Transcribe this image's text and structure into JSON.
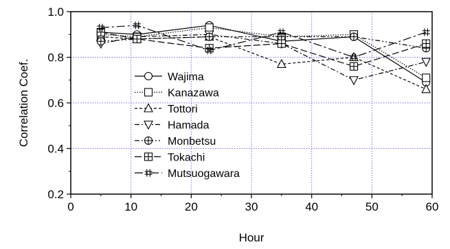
{
  "chart_data": {
    "type": "line",
    "xlabel": "Hour",
    "ylabel": "Correlation Coef.",
    "xlim": [
      0,
      60
    ],
    "ylim": [
      0.2,
      1.0
    ],
    "xticks": [
      0,
      10,
      20,
      30,
      40,
      50,
      60
    ],
    "yticks": [
      0.2,
      0.4,
      0.6,
      0.8,
      1.0
    ],
    "xtick_labels": [
      "0",
      "10",
      "20",
      "30",
      "40",
      "50",
      "60"
    ],
    "ytick_labels": [
      "0.2",
      "0.4",
      "0.6",
      "0.8",
      "1.0"
    ],
    "grid": true,
    "grid_color": "#6b6bff",
    "legend_position": "lower-left",
    "x": [
      5,
      11,
      23,
      35,
      47,
      59
    ],
    "series": [
      {
        "name": "Wajima",
        "marker": "circle",
        "dash": "solid",
        "values": [
          0.91,
          0.9,
          0.94,
          0.87,
          0.89,
          0.69
        ]
      },
      {
        "name": "Kanazawa",
        "marker": "square",
        "dash": "dotted",
        "values": [
          0.9,
          0.89,
          0.93,
          0.89,
          0.9,
          0.71
        ]
      },
      {
        "name": "Tottori",
        "marker": "triangle-up",
        "dash": "short-dash",
        "values": [
          0.89,
          0.88,
          0.89,
          0.77,
          0.8,
          0.66
        ]
      },
      {
        "name": "Hamada",
        "marker": "triangle-down",
        "dash": "dash-dot",
        "values": [
          0.86,
          0.89,
          0.9,
          0.86,
          0.7,
          0.78
        ]
      },
      {
        "name": "Monbetsu",
        "marker": "circle-plus",
        "dash": "dash-dot-dot",
        "values": [
          0.87,
          0.88,
          0.89,
          0.89,
          0.89,
          0.84
        ]
      },
      {
        "name": "Tokachi",
        "marker": "square-plus",
        "dash": "long-dash",
        "values": [
          0.91,
          0.88,
          0.84,
          0.86,
          0.76,
          0.86
        ]
      },
      {
        "name": "Mutsuogawara",
        "marker": "hash",
        "dash": "long-dash-dot",
        "values": [
          0.93,
          0.94,
          0.83,
          0.91,
          0.8,
          0.91
        ]
      }
    ]
  }
}
